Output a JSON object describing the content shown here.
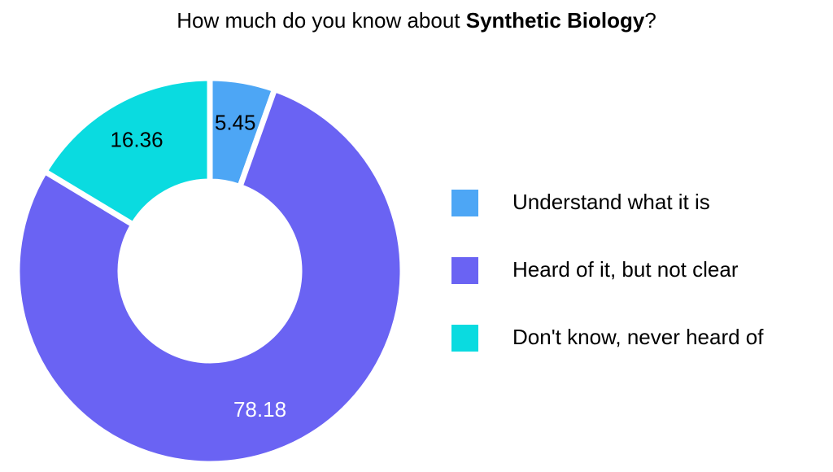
{
  "chart_data": {
    "type": "donut",
    "title": [
      "How much do you know about ",
      "Synthetic Biology",
      "?"
    ],
    "categories": [
      "Understand what it is",
      "Heard of it, but not clear",
      "Don't know, never heard of"
    ],
    "values": [
      5.45,
      78.18,
      16.36
    ],
    "colors": [
      "#4da6f5",
      "#6a63f3",
      "#0adbe0"
    ],
    "label_colors": [
      "#000000",
      "#ffffff",
      "#000000"
    ],
    "legend": "right"
  }
}
